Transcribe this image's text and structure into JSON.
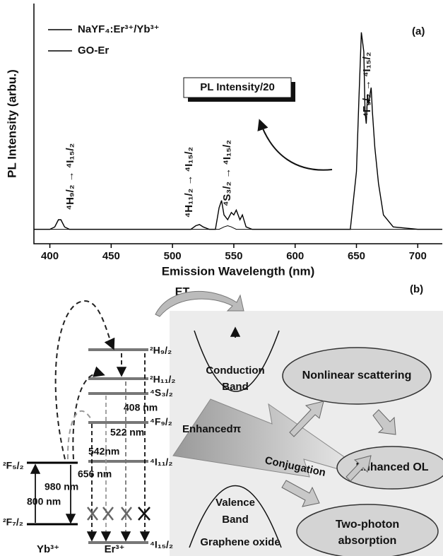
{
  "chart_data": {
    "type": "line",
    "x_label": "Emission Wavelength (nm)",
    "y_label": "PL Intensity (arbu.)",
    "x": [
      387,
      400,
      404,
      407,
      409,
      412,
      416,
      420,
      450,
      500,
      515,
      519,
      522,
      525,
      530,
      535,
      538,
      540,
      542,
      545,
      548,
      550,
      552,
      555,
      557,
      560,
      565,
      580,
      600,
      630,
      645,
      650,
      652,
      654,
      656,
      657,
      658,
      659,
      660,
      661,
      662,
      663,
      665,
      668,
      672,
      680,
      700,
      720
    ],
    "series": [
      {
        "name": "NaYF₄:Er³⁺/Yb³⁺",
        "color": "#000000",
        "values": [
          6,
          6,
          7,
          10,
          10,
          7,
          6,
          6,
          6,
          6,
          6,
          7.5,
          8,
          7,
          6,
          6,
          15,
          18,
          12,
          10,
          13,
          12,
          14,
          10,
          12,
          7,
          6,
          6,
          6,
          6,
          6,
          30,
          60,
          88,
          80,
          55,
          50,
          62,
          58,
          62,
          65,
          55,
          40,
          25,
          12,
          7,
          6,
          6
        ]
      },
      {
        "name": "GO-Er",
        "color": "#000000",
        "values": [
          6,
          6,
          6,
          6,
          6,
          6,
          6,
          6,
          6,
          6,
          6,
          6,
          6,
          6,
          6,
          6,
          6,
          6.5,
          7,
          7.5,
          7,
          6.5,
          6,
          6,
          6,
          6,
          6,
          6,
          6,
          6,
          6,
          6,
          6,
          6,
          6,
          6,
          6,
          6,
          6,
          6,
          6,
          6,
          6,
          6,
          6,
          6,
          6,
          6
        ]
      }
    ],
    "xlim": [
      387,
      720
    ],
    "ylim": [
      0,
      100
    ],
    "xticks": [
      400,
      450,
      500,
      550,
      600,
      650,
      700
    ],
    "legend": "upper left",
    "panel": "(a)",
    "scale_note": "PL Intensity/20",
    "transitions": [
      "⁴H₉/₂ → ⁴I₁₅/₂",
      "⁴H₁₁/₂ → ⁴I₁₅/₂",
      "⁴S₃/₂ → ⁴I₁₅/₂",
      "⁴F₉/₂ → ⁴I₁₅/₂"
    ]
  },
  "diagram": {
    "panel": "(b)",
    "et": "ET",
    "conduction_band": [
      "Conduction",
      "Band"
    ],
    "valence_band": [
      "Valence",
      "Band"
    ],
    "material": "Graphene oxide",
    "enhanced": "Enhancedπ",
    "conjugation": "Conjugation",
    "outcomes": {
      "nonlinear": "Nonlinear scattering",
      "ol": "Enhanced OL",
      "two_photon": [
        "Two-photon",
        "absorption"
      ]
    },
    "er_levels": [
      "²H₉/₂",
      "²H₁₁/₂",
      "⁴S₃/₂",
      "⁴F₉/₂",
      "⁴I₁₁/₂",
      "⁴I₁₅/₂"
    ],
    "yb_levels": [
      "²F₅/₂",
      "²F₇/₂"
    ],
    "wavelengths": [
      "408 nm",
      "522 nm",
      "542nm",
      "656 nm",
      "980 nm",
      "800 nm"
    ],
    "ions": [
      "Yb³⁺",
      "Er³⁺"
    ]
  }
}
